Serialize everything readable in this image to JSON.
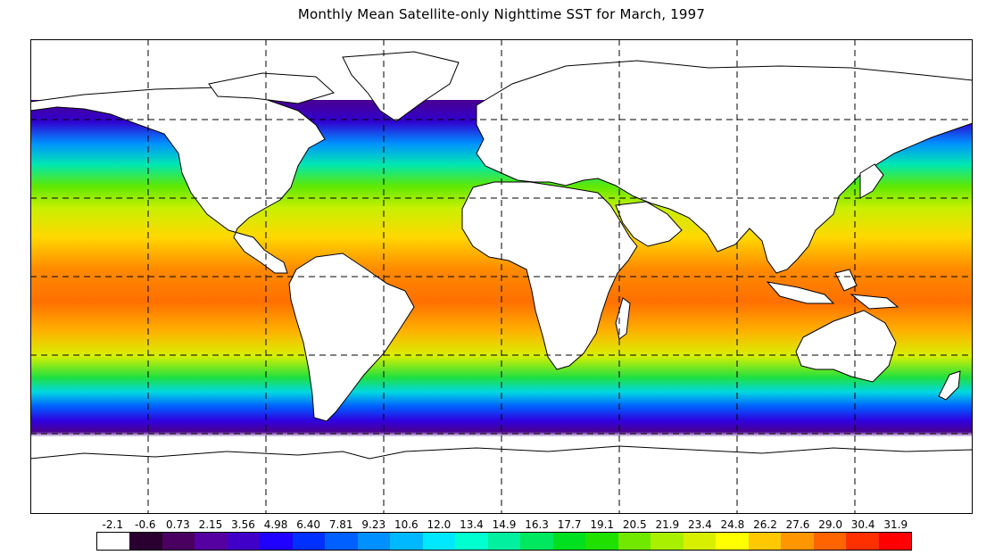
{
  "title": "Monthly Mean Satellite-only Nighttime SST for March, 1997",
  "colorbar": {
    "ticks": [
      "-2.1",
      "-0.6",
      "0.73",
      "2.15",
      "3.56",
      "4.98",
      "6.40",
      "7.81",
      "9.23",
      "10.6",
      "12.0",
      "13.4",
      "14.9",
      "16.3",
      "17.7",
      "19.1",
      "20.5",
      "21.9",
      "23.4",
      "24.8",
      "26.2",
      "27.6",
      "29.0",
      "30.4",
      "31.9"
    ],
    "colors": [
      "#ffffff",
      "#2a0030",
      "#4a0060",
      "#5500a0",
      "#4000c8",
      "#2000ff",
      "#0030ff",
      "#0060ff",
      "#0090ff",
      "#00b8ff",
      "#00e8ff",
      "#00ffd0",
      "#00f0a0",
      "#00e860",
      "#00e020",
      "#20e000",
      "#70e800",
      "#a8f000",
      "#d8f000",
      "#ffff00",
      "#ffc800",
      "#ff9600",
      "#ff6400",
      "#ff3000",
      "#ff0000"
    ]
  },
  "map": {
    "projection": "equirectangular",
    "grid": "dashed, 45° longitude × 30° latitude",
    "land_color": "#ffffff",
    "ocean_color_scale": "SST in °C (colorbar)"
  }
}
